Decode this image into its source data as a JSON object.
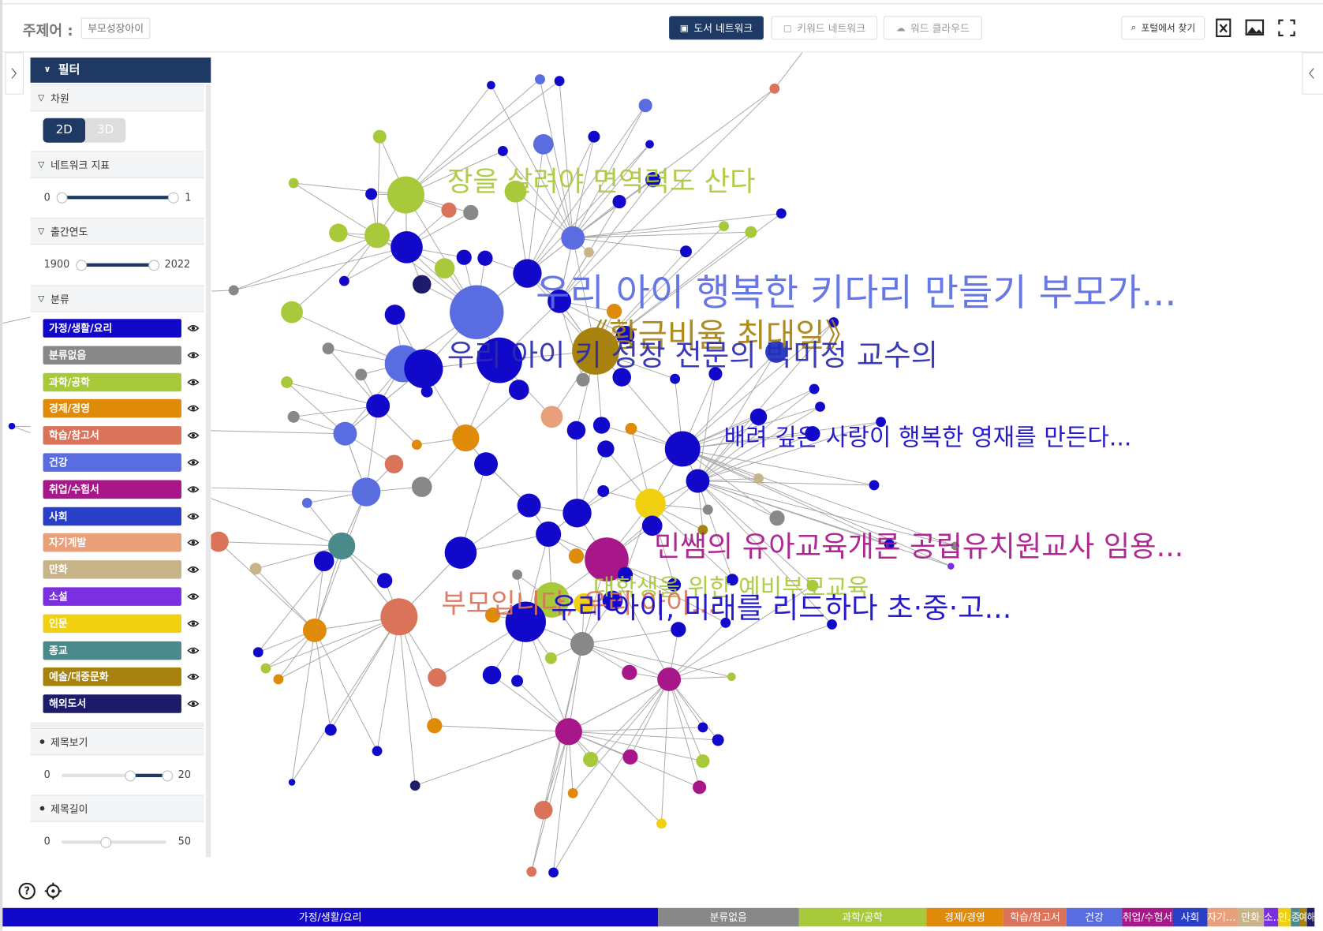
{
  "header": {
    "subject_label": "주제어 :",
    "subject": "부모성장아이",
    "tabs": [
      "도서 네트워크",
      "키워드 네트워크",
      "워드 클라우드"
    ],
    "portal": "포털에서 찾기"
  },
  "filter": {
    "title": "필터",
    "dimension": {
      "label": "차원",
      "options": [
        "2D",
        "3D"
      ]
    },
    "metric": {
      "label": "네트워크 지표",
      "min": 0,
      "max": 1
    },
    "year": {
      "label": "출간연도",
      "min": 1900,
      "max": 2022
    },
    "category_label": "분류",
    "title_view": {
      "label": "제목보기",
      "min": 0,
      "max": 20
    },
    "title_length": {
      "label": "제목길이",
      "min": 0,
      "max": 50
    }
  },
  "categories": [
    {
      "name": "가정/생활/요리",
      "color": "#1208c9",
      "share": 49.9
    },
    {
      "name": "분류없음",
      "color": "#888888",
      "share": 10.7
    },
    {
      "name": "과학/공학",
      "color": "#a8c93a",
      "share": 9.7
    },
    {
      "name": "경제/경영",
      "color": "#e08a0a",
      "share": 5.9
    },
    {
      "name": "학습/참고서",
      "color": "#d9735a",
      "share": 4.8
    },
    {
      "name": "건강",
      "color": "#5a6de0",
      "share": 4.2
    },
    {
      "name": "취업/수험서",
      "color": "#a8178a",
      "share": 3.9
    },
    {
      "name": "사회",
      "color": "#2a3fc8",
      "share": 2.6
    },
    {
      "name": "자기계발",
      "color": "#e8a07a",
      "share": 2.3
    },
    {
      "name": "만화",
      "color": "#c9b48a",
      "share": 2.0
    },
    {
      "name": "소설",
      "color": "#7a30e0",
      "share": 1.1
    },
    {
      "name": "인문",
      "color": "#f0d010",
      "share": 1.0
    },
    {
      "name": "종교",
      "color": "#4a8a8a",
      "share": 0.6
    },
    {
      "name": "예술/대중문화",
      "color": "#a8820f",
      "share": 0.6
    },
    {
      "name": "해외도서",
      "color": "#1c1c6a",
      "share": 0.6
    }
  ],
  "network": {
    "labels": [
      {
        "text": "장을 살려야 면역력도 산다",
        "color": "#a8c93a"
      },
      {
        "text": "우리 아이 행복한 키다리 만들기 부모가...",
        "color": "#5a6de0"
      },
      {
        "text": "《황금비율 최대일》",
        "color": "#a8820f"
      },
      {
        "text": "우리 아이 키 성장 전문의 박미정 교수의",
        "color": "#2a2ab0"
      },
      {
        "text": "배려 깊은 사랑이 행복한 영재를 만든다...",
        "color": "#1208c9"
      },
      {
        "text": "민쌤의 유아교육개론 공립유치원교사 임용...",
        "color": "#a8178a"
      },
      {
        "text": "대학생을 위한 예비부모교육",
        "color": "#a8c93a"
      },
      {
        "text": "부모입니다, 우리 아이...",
        "color": "#d9735a"
      },
      {
        "text": "우리 아이, 미래를 리드하다 초·중·고...",
        "color": "#1208c9"
      }
    ]
  }
}
